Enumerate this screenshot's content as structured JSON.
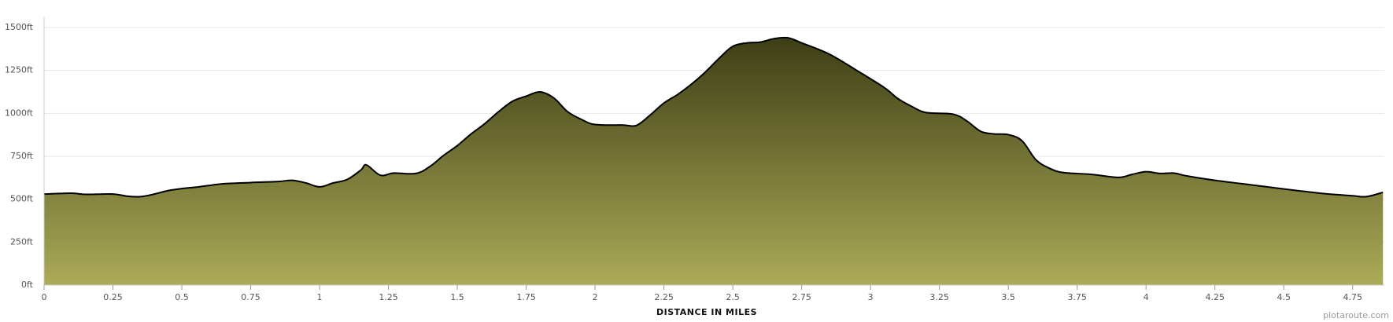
{
  "chart_data": {
    "type": "area",
    "x_label": "DISTANCE IN MILES",
    "credit": "plotaroute.com",
    "x": [
      0,
      0.1,
      0.15,
      0.25,
      0.3,
      0.35,
      0.4,
      0.45,
      0.5,
      0.55,
      0.6,
      0.65,
      0.75,
      0.85,
      0.9,
      0.95,
      1.0,
      1.05,
      1.1,
      1.15,
      1.17,
      1.22,
      1.27,
      1.35,
      1.4,
      1.45,
      1.5,
      1.55,
      1.6,
      1.65,
      1.7,
      1.75,
      1.8,
      1.85,
      1.9,
      1.95,
      2.0,
      2.1,
      2.15,
      2.2,
      2.25,
      2.3,
      2.35,
      2.4,
      2.45,
      2.5,
      2.55,
      2.6,
      2.65,
      2.7,
      2.75,
      2.85,
      2.95,
      3.05,
      3.1,
      3.15,
      3.2,
      3.3,
      3.35,
      3.4,
      3.45,
      3.5,
      3.55,
      3.6,
      3.65,
      3.7,
      3.8,
      3.9,
      3.95,
      4.0,
      4.05,
      4.1,
      4.15,
      4.25,
      4.35,
      4.45,
      4.55,
      4.65,
      4.75,
      4.8,
      4.86
    ],
    "values": [
      530,
      535,
      528,
      530,
      518,
      515,
      530,
      550,
      562,
      570,
      580,
      590,
      597,
      603,
      610,
      595,
      572,
      595,
      615,
      670,
      700,
      640,
      652,
      650,
      690,
      755,
      812,
      880,
      940,
      1010,
      1070,
      1100,
      1125,
      1090,
      1010,
      965,
      935,
      932,
      930,
      990,
      1060,
      1110,
      1170,
      1240,
      1320,
      1390,
      1410,
      1415,
      1435,
      1440,
      1410,
      1345,
      1250,
      1150,
      1085,
      1040,
      1005,
      995,
      955,
      895,
      880,
      876,
      840,
      730,
      680,
      655,
      645,
      627,
      645,
      660,
      650,
      652,
      635,
      610,
      590,
      570,
      550,
      532,
      520,
      515,
      540
    ],
    "color_top": "#3e3e15",
    "color_bottom": "#abab58",
    "line_color": "#000000",
    "xlim": [
      0,
      4.865
    ],
    "ylim": [
      0,
      1500
    ],
    "xticks": [
      0,
      0.25,
      0.5,
      0.75,
      1,
      1.25,
      1.5,
      1.75,
      2,
      2.25,
      2.5,
      2.75,
      3,
      3.25,
      3.5,
      3.75,
      4,
      4.25,
      4.5,
      4.75
    ],
    "yticks": [
      {
        "value": 0,
        "label": "0ft"
      },
      {
        "value": 250,
        "label": "250ft"
      },
      {
        "value": 500,
        "label": "500ft"
      },
      {
        "value": 750,
        "label": "750ft"
      },
      {
        "value": 1000,
        "label": "1000ft"
      },
      {
        "value": 1250,
        "label": "1250ft"
      },
      {
        "value": 1500,
        "label": "1500ft"
      }
    ],
    "grid": true
  }
}
